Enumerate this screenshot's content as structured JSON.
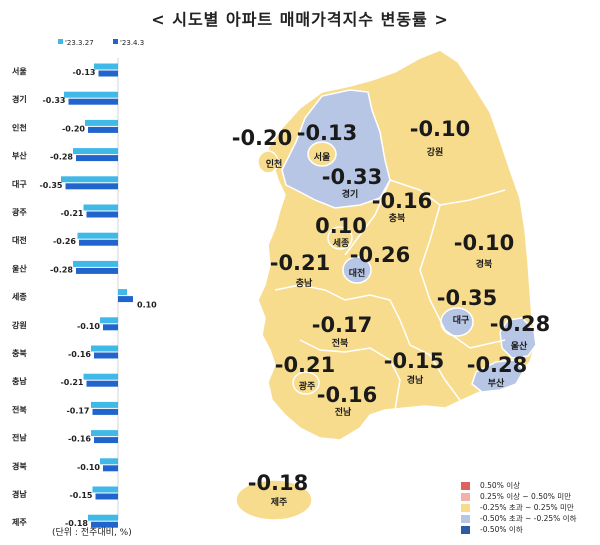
{
  "title": "< 시도별 아파트 매매가격지수 변동률 >",
  "unit_note": "(단위 : 전주대비, %)",
  "colors": {
    "prev": "#40b9e9",
    "curr": "#2164cc",
    "map_yellow": "#f8dc8e",
    "map_blue": "#b8c6e6"
  },
  "legend": [
    {
      "label": "0.50% 이상",
      "color": "#e06060"
    },
    {
      "label": "0.25% 이상 ~ 0.50% 미만",
      "color": "#f2b1ad"
    },
    {
      "label": "-0.25% 초과 ~ 0.25% 미만",
      "color": "#f8dc8e"
    },
    {
      "label": "-0.50% 초과 ~ -0.25% 이하",
      "color": "#b8c6e6"
    },
    {
      "label": "-0.50% 이하",
      "color": "#2e5aa8"
    }
  ],
  "chart_data": {
    "type": "bar",
    "orientation": "horizontal",
    "categories": [
      "서울",
      "경기",
      "인천",
      "부산",
      "대구",
      "광주",
      "대전",
      "울산",
      "세종",
      "강원",
      "충북",
      "충남",
      "전북",
      "전남",
      "경북",
      "경남",
      "제주"
    ],
    "series": [
      {
        "name": "'23.3.27",
        "values": [
          -0.16,
          -0.36,
          -0.22,
          -0.3,
          -0.38,
          -0.23,
          -0.27,
          -0.3,
          0.06,
          -0.12,
          -0.18,
          -0.23,
          -0.18,
          -0.18,
          -0.12,
          -0.17,
          -0.2
        ]
      },
      {
        "name": "'23.4.3",
        "values": [
          -0.13,
          -0.33,
          -0.2,
          -0.28,
          -0.35,
          -0.21,
          -0.26,
          -0.28,
          0.1,
          -0.1,
          -0.16,
          -0.21,
          -0.17,
          -0.16,
          -0.1,
          -0.15,
          -0.18
        ]
      }
    ],
    "value_labels": [
      "-0.13",
      "-0.33",
      "-0.20",
      "-0.28",
      "-0.35",
      "-0.21",
      "-0.26",
      "-0.28",
      "0.10",
      "-0.10",
      "-0.16",
      "-0.21",
      "-0.17",
      "-0.16",
      "-0.10",
      "-0.15",
      "-0.18"
    ],
    "legend_position": "top-left",
    "grid": false
  },
  "map_labels": [
    {
      "region": "인천",
      "value": "-0.20"
    },
    {
      "region": "서울",
      "value": "-0.13"
    },
    {
      "region": "강원",
      "value": "-0.10"
    },
    {
      "region": "경기",
      "value": "-0.33"
    },
    {
      "region": "충북",
      "value": "-0.16"
    },
    {
      "region": "세종",
      "value": "0.10"
    },
    {
      "region": "경북",
      "value": "-0.10"
    },
    {
      "region": "충남",
      "value": "-0.21"
    },
    {
      "region": "대전",
      "value": "-0.26"
    },
    {
      "region": "대구",
      "value": "-0.35"
    },
    {
      "region": "전북",
      "value": "-0.17"
    },
    {
      "region": "울산",
      "value": "-0.28"
    },
    {
      "region": "경남",
      "value": "-0.15"
    },
    {
      "region": "부산",
      "value": "-0.28"
    },
    {
      "region": "광주",
      "value": "-0.21"
    },
    {
      "region": "전남",
      "value": "-0.16"
    },
    {
      "region": "제주",
      "value": "-0.18"
    }
  ]
}
